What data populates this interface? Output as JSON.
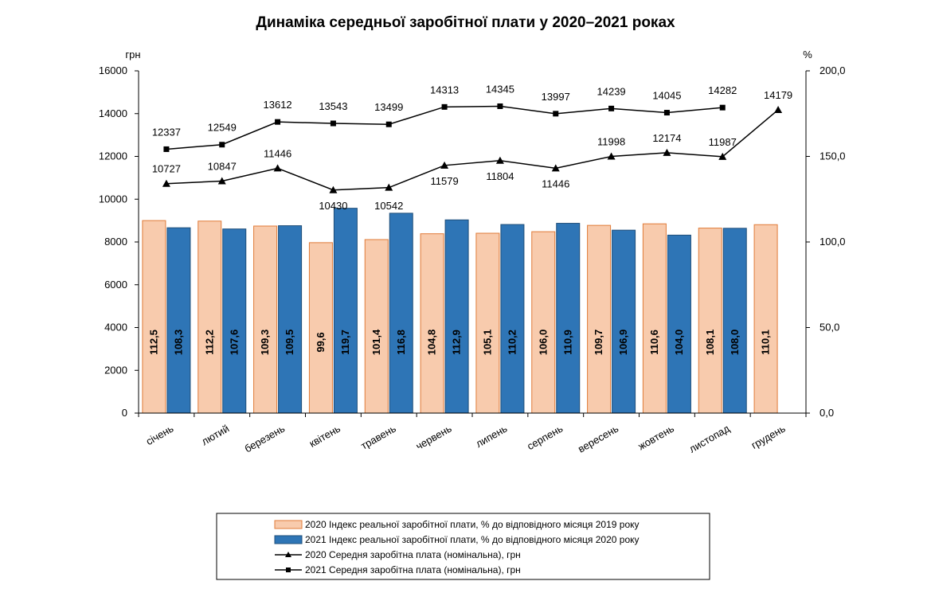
{
  "chart_data": {
    "type": "bar",
    "title": "Динаміка середньої заробітної плати у 2020–2021 роках",
    "categories": [
      "січень",
      "лютий",
      "березень",
      "квітень",
      "травень",
      "червень",
      "липень",
      "серпень",
      "вересень",
      "жовтень",
      "листопад",
      "грудень"
    ],
    "left_axis": {
      "unit": "грн",
      "ylim": [
        0,
        16000
      ],
      "ticks": [
        "0",
        "2000",
        "4000",
        "6000",
        "8000",
        "10000",
        "12000",
        "14000",
        "16000"
      ]
    },
    "right_axis": {
      "unit": "%",
      "ylim": [
        0,
        200
      ],
      "ticks": [
        "0,0",
        "50,0",
        "100,0",
        "150,0",
        "200,0"
      ]
    },
    "series": [
      {
        "name": "2020 Індекс реальної заробітної плати, % до відповідного місяця 2019 року",
        "kind": "bar",
        "axis": "right",
        "color": "#F8CBAD",
        "border": "#E07B39",
        "values": [
          112.5,
          112.2,
          109.3,
          99.6,
          101.4,
          104.8,
          105.1,
          106.0,
          109.7,
          110.6,
          108.1,
          110.1
        ],
        "labels": [
          "112,5",
          "112,2",
          "109,3",
          "99,6",
          "101,4",
          "104,8",
          "105,1",
          "106,0",
          "109,7",
          "110,6",
          "108,1",
          "110,1"
        ]
      },
      {
        "name": "2021 Індекс реальної заробітної плати, % до відповідного місяця 2020 року",
        "kind": "bar",
        "axis": "right",
        "color": "#2E75B6",
        "border": "#1F4E79",
        "values": [
          108.3,
          107.6,
          109.5,
          119.7,
          116.8,
          112.9,
          110.2,
          110.9,
          106.9,
          104.0,
          108.0,
          null
        ],
        "labels": [
          "108,3",
          "107,6",
          "109,5",
          "119,7",
          "116,8",
          "112,9",
          "110,2",
          "110,9",
          "106,9",
          "104,0",
          "108,0",
          ""
        ]
      },
      {
        "name": "2020 Середня заробітна плата (номінальна), грн",
        "kind": "line",
        "marker": "triangle",
        "axis": "left",
        "color": "#000000",
        "values": [
          10727,
          10847,
          11446,
          10430,
          10542,
          11579,
          11804,
          11446,
          11998,
          12174,
          11987,
          14179
        ],
        "labels": [
          "10727",
          "10847",
          "11446",
          "10430",
          "10542",
          "11579",
          "11804",
          "11446",
          "11998",
          "12174",
          "11987",
          "14179"
        ]
      },
      {
        "name": "2021 Середня заробітна плата (номінальна), грн",
        "kind": "line",
        "marker": "square",
        "axis": "left",
        "color": "#000000",
        "values": [
          12337,
          12549,
          13612,
          13543,
          13499,
          14313,
          14345,
          13997,
          14239,
          14045,
          14282,
          null
        ],
        "labels": [
          "12337",
          "12549",
          "13612",
          "13543",
          "13499",
          "14313",
          "14345",
          "13997",
          "14239",
          "14045",
          "14282",
          ""
        ]
      }
    ],
    "grid": false,
    "legend_position": "bottom"
  }
}
